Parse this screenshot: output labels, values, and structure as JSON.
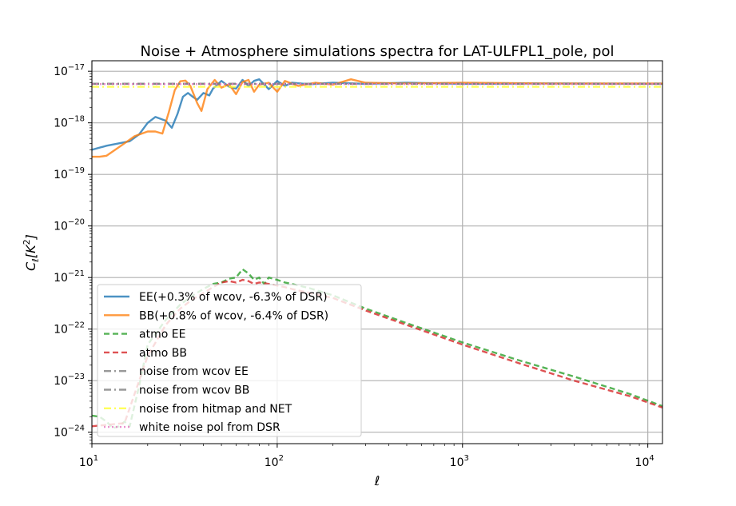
{
  "chart_data": {
    "type": "line",
    "title": "Noise + Atmosphere simulations spectra for LAT-ULFPL1_pole, pol",
    "xlabel": "ℓ",
    "ylabel": "C_ℓ [K²]",
    "x_scale": "log",
    "y_scale": "log",
    "xlim": [
      10,
      12000
    ],
    "ylim": [
      6e-25,
      1.6e-17
    ],
    "grid": true,
    "legend_position": "lower-left",
    "x_ticks": [
      {
        "base": "10",
        "exp": "1",
        "value": 10
      },
      {
        "base": "10",
        "exp": "2",
        "value": 100
      },
      {
        "base": "10",
        "exp": "3",
        "value": 1000
      },
      {
        "base": "10",
        "exp": "4",
        "value": 10000
      }
    ],
    "y_ticks": [
      {
        "base": "10",
        "exp": "−24",
        "value": 1e-24
      },
      {
        "base": "10",
        "exp": "−23",
        "value": 1e-23
      },
      {
        "base": "10",
        "exp": "−22",
        "value": 1e-22
      },
      {
        "base": "10",
        "exp": "−21",
        "value": 1e-21
      },
      {
        "base": "10",
        "exp": "−20",
        "value": 1e-20
      },
      {
        "base": "10",
        "exp": "−19",
        "value": 1e-19
      },
      {
        "base": "10",
        "exp": "−18",
        "value": 1e-18
      },
      {
        "base": "10",
        "exp": "−17",
        "value": 1e-17
      }
    ],
    "series": [
      {
        "name": "EE(+0.3% of wcov, -6.3% of DSR)",
        "color": "#1f77b4",
        "style": "solid",
        "x": [
          10,
          12,
          14,
          16,
          18,
          20,
          22,
          25,
          27,
          29,
          31,
          33,
          35,
          37,
          40,
          43,
          45,
          50,
          55,
          60,
          65,
          70,
          75,
          80,
          90,
          100,
          110,
          120,
          150,
          200,
          300,
          500,
          1000,
          3000,
          12000
        ],
        "y": [
          3e-19,
          3.6e-19,
          4e-19,
          4.4e-19,
          6e-19,
          1e-18,
          1.3e-18,
          1.1e-18,
          8e-19,
          1.5e-18,
          3.2e-18,
          3.8e-18,
          3.2e-18,
          2.8e-18,
          3.8e-18,
          3.4e-18,
          4.6e-18,
          6.5e-18,
          5e-18,
          4.6e-18,
          6.8e-18,
          5.2e-18,
          6.5e-18,
          7e-18,
          4.5e-18,
          6.5e-18,
          5.2e-18,
          6e-18,
          5.6e-18,
          6e-18,
          5.7e-18,
          6e-18,
          5.7e-18,
          5.8e-18,
          5.7e-18
        ]
      },
      {
        "name": "BB(+0.8% of wcov, -6.4% of DSR)",
        "color": "#ff7f0e",
        "style": "solid",
        "x": [
          10,
          11,
          12,
          13,
          15,
          17,
          20,
          22,
          24,
          26,
          28,
          30,
          32,
          34,
          37,
          39,
          42,
          46,
          50,
          55,
          60,
          65,
          70,
          75,
          80,
          90,
          100,
          110,
          130,
          160,
          200,
          250,
          300,
          500,
          1000,
          3000,
          12000
        ],
        "y": [
          2.2e-19,
          2.2e-19,
          2.3e-19,
          2.8e-19,
          4e-19,
          5.5e-19,
          6.8e-19,
          6.8e-19,
          6.2e-19,
          1.6e-18,
          4.3e-18,
          6.4e-18,
          6.6e-18,
          5.2e-18,
          2.4e-18,
          1.7e-18,
          4.5e-18,
          6.8e-18,
          4.8e-18,
          5.6e-18,
          3.6e-18,
          6.2e-18,
          6.8e-18,
          4e-18,
          5.5e-18,
          6e-18,
          4e-18,
          6.5e-18,
          5.2e-18,
          6e-18,
          5.5e-18,
          7e-18,
          6e-18,
          5.8e-18,
          6e-18,
          5.8e-18,
          5.8e-18
        ]
      },
      {
        "name": "atmo EE",
        "color": "#2ca02c",
        "style": "dashed",
        "x": [
          10,
          11,
          12,
          13,
          14,
          15,
          16,
          18,
          20,
          25,
          30,
          35,
          40,
          45,
          50,
          55,
          60,
          65,
          70,
          75,
          80,
          85,
          90,
          100,
          110,
          120,
          150,
          200,
          300,
          500,
          1000,
          2000,
          4000,
          8000,
          12000
        ],
        "y": [
          2.1e-24,
          2e-24,
          1.6e-24,
          1.2e-24,
          1.3e-24,
          1.6e-24,
          1.3e-24,
          8e-24,
          5e-23,
          1.5e-22,
          3e-22,
          4.5e-22,
          6e-22,
          7.5e-22,
          8e-22,
          9.5e-22,
          1e-21,
          1.45e-21,
          1.2e-21,
          9e-22,
          1e-21,
          7.5e-22,
          1e-21,
          9e-22,
          8e-22,
          7.5e-22,
          6.2e-22,
          4.5e-22,
          2.5e-22,
          1.3e-22,
          5.5e-23,
          2.5e-23,
          1.2e-23,
          5.5e-24,
          3.2e-24
        ]
      },
      {
        "name": "atmo BB",
        "color": "#d62728",
        "style": "dashed",
        "x": [
          10,
          15,
          20,
          25,
          30,
          35,
          40,
          45,
          50,
          55,
          60,
          65,
          70,
          75,
          80,
          90,
          100,
          110,
          120,
          150,
          200,
          300,
          500,
          1000,
          2000,
          4000,
          8000,
          12000
        ],
        "y": [
          1.3e-24,
          1.5e-24,
          3e-23,
          1.2e-22,
          2.5e-22,
          3.8e-22,
          5e-22,
          6.5e-22,
          8e-22,
          8.5e-22,
          8e-22,
          9e-22,
          8.5e-22,
          7.5e-22,
          8e-22,
          7.5e-22,
          7e-22,
          6.5e-22,
          6e-22,
          5e-22,
          4e-22,
          2.3e-22,
          1.2e-22,
          5e-23,
          2.2e-23,
          1e-23,
          5e-24,
          3e-24
        ]
      },
      {
        "name": "noise from wcov EE",
        "color": "#7f7f7f",
        "style": "dashdot",
        "x": [
          10,
          12000
        ],
        "y": [
          5.7e-18,
          5.7e-18
        ]
      },
      {
        "name": "noise from wcov BB",
        "color": "#7f7f7f",
        "style": "dashdot",
        "x": [
          10,
          12000
        ],
        "y": [
          5.75e-18,
          5.75e-18
        ]
      },
      {
        "name": "noise from hitmap and NET",
        "color": "#ffff33",
        "style": "dashdot",
        "x": [
          10,
          12000
        ],
        "y": [
          5e-18,
          5e-18
        ]
      },
      {
        "name": "white noise pol from DSR",
        "color": "#e377c2",
        "style": "dotted",
        "x": [
          10,
          12000
        ],
        "y": [
          5.65e-18,
          5.65e-18
        ]
      }
    ]
  }
}
